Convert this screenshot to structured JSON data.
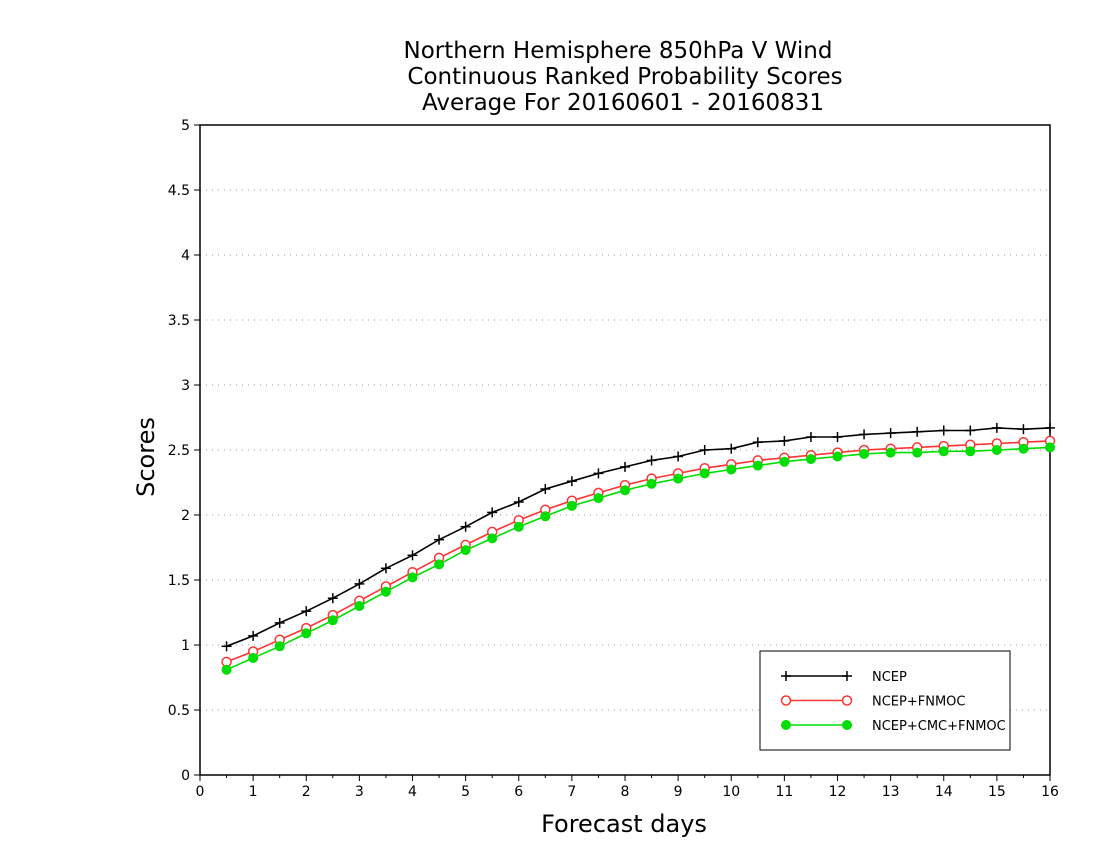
{
  "chart_data": {
    "type": "line",
    "title_lines": [
      "Northern Hemisphere 850hPa V Wind",
      "Continuous Ranked Probability Scores",
      "Average For 20160601 - 20160831"
    ],
    "xlabel": "Forecast days",
    "ylabel": "Scores",
    "xlim": [
      0,
      16
    ],
    "ylim": [
      0,
      5
    ],
    "xticks": [
      "0",
      "1",
      "2",
      "3",
      "4",
      "5",
      "6",
      "7",
      "8",
      "9",
      "10",
      "11",
      "12",
      "13",
      "14",
      "15",
      "16"
    ],
    "yticks": [
      "0",
      "0.5",
      "1",
      "1.5",
      "2",
      "2.5",
      "3",
      "3.5",
      "4",
      "4.5",
      "5"
    ],
    "grid": "horizontal-dotted",
    "legend_position": "bottom-right",
    "x": [
      0.5,
      1,
      1.5,
      2,
      2.5,
      3,
      3.5,
      4,
      4.5,
      5,
      5.5,
      6,
      6.5,
      7,
      7.5,
      8,
      8.5,
      9,
      9.5,
      10,
      10.5,
      11,
      11.5,
      12,
      12.5,
      13,
      13.5,
      14,
      14.5,
      15,
      15.5,
      16
    ],
    "series": [
      {
        "name": "NCEP",
        "color": "#000000",
        "marker": "plus",
        "values": [
          0.99,
          1.07,
          1.17,
          1.26,
          1.36,
          1.47,
          1.59,
          1.69,
          1.81,
          1.91,
          2.02,
          2.1,
          2.2,
          2.26,
          2.32,
          2.37,
          2.42,
          2.45,
          2.5,
          2.51,
          2.56,
          2.57,
          2.6,
          2.6,
          2.62,
          2.63,
          2.64,
          2.65,
          2.65,
          2.67,
          2.66,
          2.67
        ]
      },
      {
        "name": "NCEP+FNMOC",
        "color": "#ff3333",
        "marker": "open-circle",
        "values": [
          0.87,
          0.95,
          1.04,
          1.13,
          1.23,
          1.34,
          1.45,
          1.56,
          1.67,
          1.77,
          1.87,
          1.96,
          2.04,
          2.11,
          2.17,
          2.23,
          2.28,
          2.32,
          2.36,
          2.39,
          2.42,
          2.44,
          2.46,
          2.48,
          2.5,
          2.51,
          2.52,
          2.53,
          2.54,
          2.55,
          2.56,
          2.57
        ]
      },
      {
        "name": "NCEP+CMC+FNMOC",
        "color": "#00dd00",
        "marker": "filled-circle",
        "values": [
          0.81,
          0.9,
          0.99,
          1.09,
          1.19,
          1.3,
          1.41,
          1.52,
          1.62,
          1.73,
          1.82,
          1.91,
          1.99,
          2.07,
          2.13,
          2.19,
          2.24,
          2.28,
          2.32,
          2.35,
          2.38,
          2.41,
          2.43,
          2.45,
          2.47,
          2.48,
          2.48,
          2.49,
          2.49,
          2.5,
          2.51,
          2.52
        ]
      }
    ]
  }
}
